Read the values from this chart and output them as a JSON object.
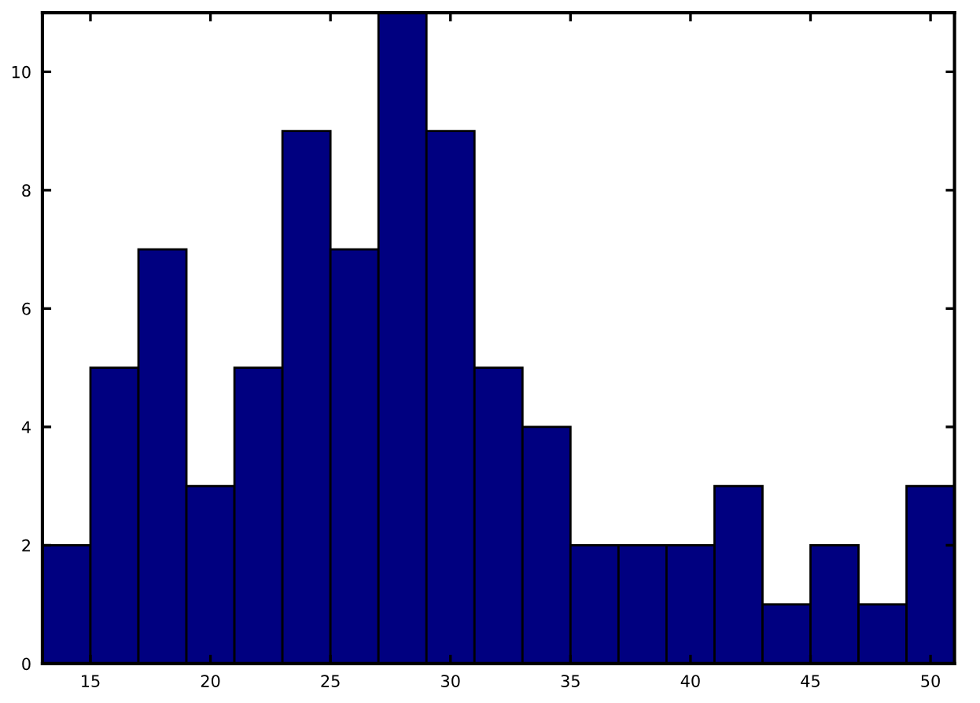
{
  "chart_data": {
    "type": "histogram",
    "bins": [
      13,
      15,
      17,
      19,
      21,
      23,
      25,
      27,
      29,
      31,
      33,
      35,
      37,
      39,
      41,
      43,
      45,
      47,
      49,
      51
    ],
    "values": [
      2,
      5,
      7,
      3,
      5,
      9,
      7,
      11,
      9,
      5,
      4,
      2,
      2,
      2,
      3,
      1,
      2,
      1,
      3
    ],
    "color": "#000080",
    "xlim": [
      13,
      51
    ],
    "ylim": [
      0,
      11
    ],
    "xticks": [
      15,
      20,
      25,
      30,
      35,
      40,
      45,
      50
    ],
    "yticks": [
      0,
      2,
      4,
      6,
      8,
      10
    ],
    "grid": false
  }
}
